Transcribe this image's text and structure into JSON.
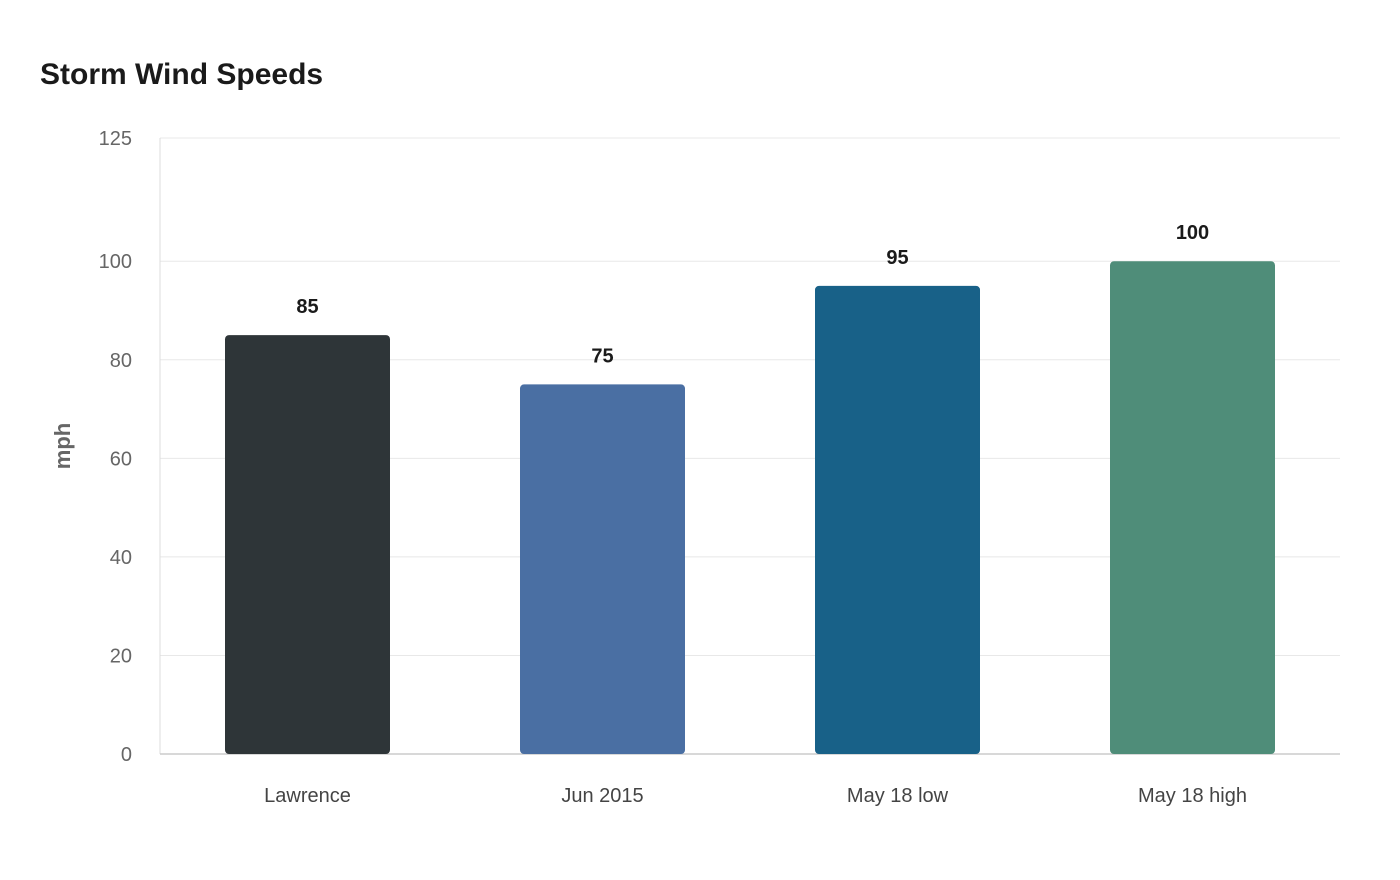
{
  "chart_data": {
    "type": "bar",
    "title": "Storm Wind Speeds",
    "xlabel": "",
    "ylabel": "mph",
    "categories": [
      "Lawrence",
      "Jun 2015",
      "May 18 low",
      "May 18 high"
    ],
    "values": [
      85,
      75,
      95,
      100
    ],
    "colors": [
      "#2e3538",
      "#4a6fa3",
      "#186188",
      "#4f8d79"
    ],
    "yticks": [
      0,
      20,
      40,
      60,
      80,
      100,
      125
    ],
    "ylim": [
      0,
      125
    ],
    "grid": true,
    "legend": "none"
  }
}
